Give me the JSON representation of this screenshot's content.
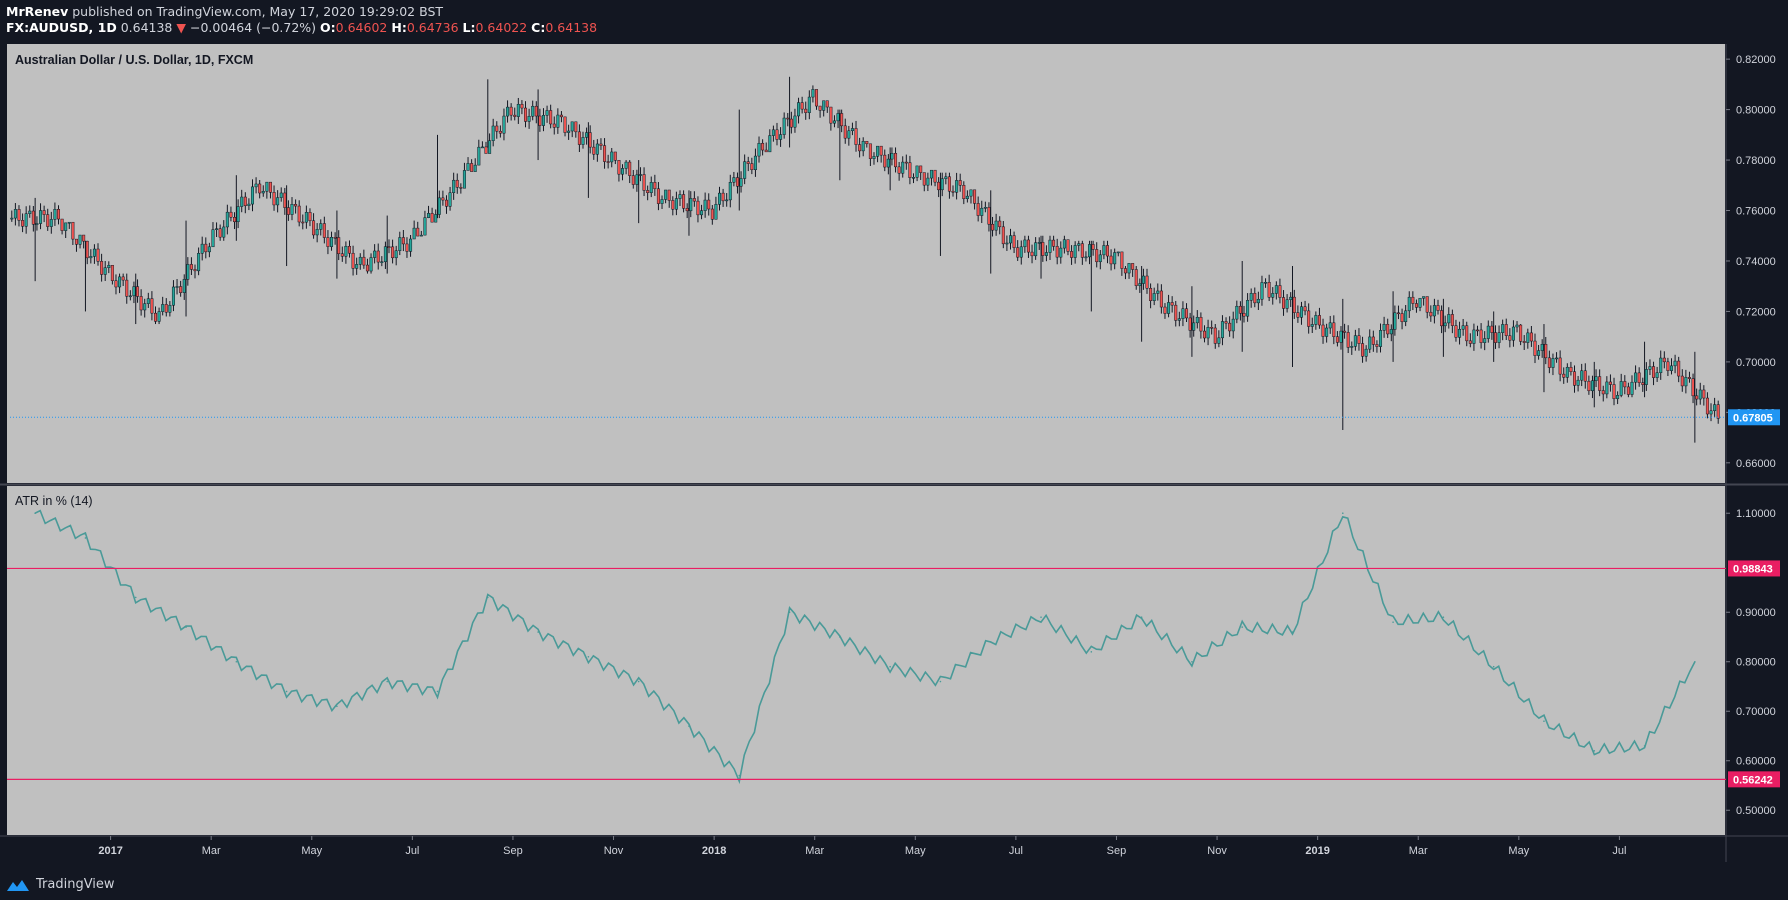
{
  "header": {
    "publisher": "MrRenev",
    "published_text": "published on TradingView.com, May 17, 2020 19:29:02 BST",
    "symbol": "FX:AUDUSD, 1D",
    "last": "0.64138",
    "change_arrow": "▼",
    "change": "−0.00464 (−0.72%)",
    "o_label": "O:",
    "o_value": "0.64602",
    "h_label": "H:",
    "h_value": "0.64736",
    "l_label": "L:",
    "l_value": "0.64022",
    "c_label": "C:",
    "c_value": "0.64138"
  },
  "footer": {
    "brand": "TradingView"
  },
  "colors": {
    "background": "#131722",
    "pane": "#c0c0c0",
    "candle_up": "#26a69a",
    "candle_down": "#ef5350",
    "atr_line": "#4a9a98",
    "level_line": "#e91e63",
    "last_price_label": "#2196f3"
  },
  "chart_data": [
    {
      "type": "candlestick",
      "title": "Australian Dollar / U.S. Dollar, 1D, FXCM",
      "ylim": [
        0.652,
        0.826
      ],
      "y_ticks": [
        "0.82000",
        "0.80000",
        "0.78000",
        "0.76000",
        "0.74000",
        "0.72000",
        "0.70000",
        "0.68000",
        "0.66000"
      ],
      "last_value_label": "0.67805",
      "last_value": 0.67805,
      "x": [
        "2016-11",
        "2016-12",
        "2017-01",
        "2017-02",
        "2017-03",
        "2017-04",
        "2017-05",
        "2017-06",
        "2017-07",
        "2017-08",
        "2017-09",
        "2017-10",
        "2017-11",
        "2017-12",
        "2018-01",
        "2018-02",
        "2018-03",
        "2018-04",
        "2018-05",
        "2018-06",
        "2018-07",
        "2018-08",
        "2018-09",
        "2018-10",
        "2018-11",
        "2018-12",
        "2019-01",
        "2019-02",
        "2019-03",
        "2019-04",
        "2019-05",
        "2019-06",
        "2019-07",
        "2019-08"
      ],
      "close": [
        0.757,
        0.735,
        0.718,
        0.748,
        0.77,
        0.755,
        0.738,
        0.748,
        0.772,
        0.8,
        0.795,
        0.78,
        0.765,
        0.76,
        0.785,
        0.805,
        0.785,
        0.775,
        0.768,
        0.745,
        0.745,
        0.742,
        0.722,
        0.71,
        0.73,
        0.715,
        0.705,
        0.725,
        0.71,
        0.712,
        0.695,
        0.688,
        0.7,
        0.678
      ],
      "high": [
        0.765,
        0.748,
        0.735,
        0.756,
        0.774,
        0.77,
        0.76,
        0.758,
        0.79,
        0.812,
        0.808,
        0.795,
        0.78,
        0.768,
        0.8,
        0.813,
        0.8,
        0.785,
        0.775,
        0.768,
        0.75,
        0.748,
        0.738,
        0.73,
        0.74,
        0.738,
        0.725,
        0.728,
        0.725,
        0.72,
        0.715,
        0.7,
        0.708,
        0.704
      ],
      "low": [
        0.732,
        0.72,
        0.715,
        0.718,
        0.748,
        0.738,
        0.733,
        0.735,
        0.757,
        0.785,
        0.78,
        0.765,
        0.755,
        0.75,
        0.76,
        0.785,
        0.772,
        0.768,
        0.742,
        0.735,
        0.733,
        0.72,
        0.708,
        0.702,
        0.704,
        0.698,
        0.673,
        0.7,
        0.702,
        0.7,
        0.688,
        0.682,
        0.686,
        0.668
      ]
    },
    {
      "type": "line",
      "title": "ATR in % (14)",
      "ylim": [
        0.45,
        1.155
      ],
      "y_ticks": [
        "1.10000",
        "0.90000",
        "0.80000",
        "0.70000",
        "0.60000",
        "0.50000"
      ],
      "x": [
        "2016-11",
        "2016-12",
        "2017-01",
        "2017-02",
        "2017-03",
        "2017-04",
        "2017-05",
        "2017-06",
        "2017-07",
        "2017-08",
        "2017-09",
        "2017-10",
        "2017-11",
        "2017-12",
        "2018-01",
        "2018-02",
        "2018-03",
        "2018-04",
        "2018-05",
        "2018-06",
        "2018-07",
        "2018-08",
        "2018-09",
        "2018-10",
        "2018-11",
        "2018-12",
        "2019-01",
        "2019-02",
        "2019-03",
        "2019-04",
        "2019-05",
        "2019-06",
        "2019-07",
        "2019-08"
      ],
      "series": [
        {
          "values": [
            1.1,
            1.05,
            0.93,
            0.87,
            0.8,
            0.74,
            0.71,
            0.76,
            0.74,
            0.93,
            0.86,
            0.81,
            0.76,
            0.67,
            0.57,
            0.9,
            0.85,
            0.79,
            0.76,
            0.84,
            0.89,
            0.82,
            0.89,
            0.8,
            0.87,
            0.86,
            1.1,
            0.88,
            0.89,
            0.79,
            0.68,
            0.62,
            0.63,
            0.8
          ]
        }
      ],
      "levels": [
        {
          "value": 0.98843,
          "label": "0.98843"
        },
        {
          "value": 0.56242,
          "label": "0.56242"
        }
      ]
    }
  ],
  "x_axis": {
    "ticks": [
      {
        "label": "2017",
        "bold": true
      },
      {
        "label": "Mar",
        "bold": false
      },
      {
        "label": "May",
        "bold": false
      },
      {
        "label": "Jul",
        "bold": false
      },
      {
        "label": "Sep",
        "bold": false
      },
      {
        "label": "Nov",
        "bold": false
      },
      {
        "label": "2018",
        "bold": true
      },
      {
        "label": "Mar",
        "bold": false
      },
      {
        "label": "May",
        "bold": false
      },
      {
        "label": "Jul",
        "bold": false
      },
      {
        "label": "Sep",
        "bold": false
      },
      {
        "label": "Nov",
        "bold": false
      },
      {
        "label": "2019",
        "bold": true
      },
      {
        "label": "Mar",
        "bold": false
      },
      {
        "label": "May",
        "bold": false
      },
      {
        "label": "Jul",
        "bold": false
      }
    ]
  }
}
